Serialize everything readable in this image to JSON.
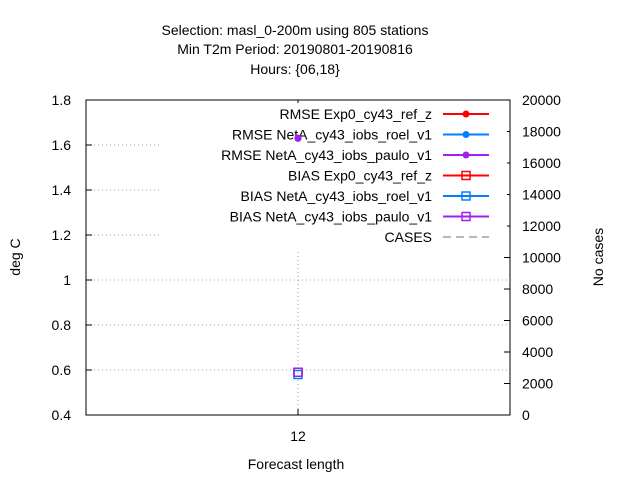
{
  "chart_data": {
    "type": "scatter",
    "title_lines": [
      "Selection: masl_0-200m using   805 stations",
      "Min T2m   Period: 20190801-20190816",
      "Hours: {06,18}"
    ],
    "xlabel": "Forecast length",
    "ylabel": "deg C",
    "y2label": "No cases",
    "categories": [
      "12"
    ],
    "ylim": [
      0.4,
      1.8
    ],
    "yticks": [
      "0.4",
      "0.6",
      "0.8",
      "1",
      "1.2",
      "1.4",
      "1.6",
      "1.8"
    ],
    "y2lim": [
      0,
      20000
    ],
    "y2ticks": [
      "0",
      "2000",
      "4000",
      "6000",
      "8000",
      "10000",
      "12000",
      "14000",
      "16000",
      "18000",
      "20000"
    ],
    "grid": true,
    "legend_position": "top-right",
    "series": [
      {
        "name": "RMSE Exp0_cy43_ref_z",
        "color": "#ff0000",
        "marker": "filled-circle",
        "axis": "y",
        "values": [
          1.63
        ]
      },
      {
        "name": "RMSE NetA_cy43_iobs_roel_v1",
        "color": "#0080ff",
        "marker": "filled-circle",
        "axis": "y",
        "values": [
          1.63
        ]
      },
      {
        "name": "RMSE NetA_cy43_iobs_paulo_v1",
        "color": "#a020f0",
        "marker": "filled-circle",
        "axis": "y",
        "values": [
          1.63
        ]
      },
      {
        "name": "BIAS Exp0_cy43_ref_z",
        "color": "#ff0000",
        "marker": "open-square",
        "axis": "y",
        "values": [
          0.59
        ]
      },
      {
        "name": "BIAS NetA_cy43_iobs_roel_v1",
        "color": "#0080ff",
        "marker": "open-square",
        "axis": "y",
        "values": [
          0.58
        ]
      },
      {
        "name": "BIAS NetA_cy43_iobs_paulo_v1",
        "color": "#a020f0",
        "marker": "open-square",
        "axis": "y",
        "values": [
          0.59
        ]
      },
      {
        "name": "CASES",
        "color": "#a0a0a0",
        "marker": "dashed-line",
        "axis": "y2",
        "values": [
          null
        ]
      }
    ]
  }
}
